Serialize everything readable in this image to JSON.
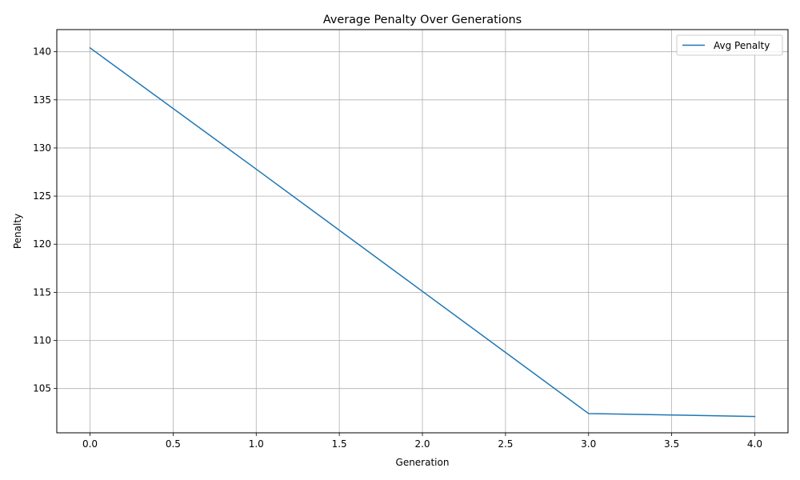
{
  "chart_data": {
    "type": "line",
    "title": "Average Penalty Over Generations",
    "xlabel": "Generation",
    "ylabel": "Penalty",
    "xlim": [
      -0.2,
      4.2
    ],
    "ylim": [
      100.4,
      142.3
    ],
    "xticks": [
      0.0,
      0.5,
      1.0,
      1.5,
      2.0,
      2.5,
      3.0,
      3.5,
      4.0
    ],
    "xtick_labels": [
      "0.0",
      "0.5",
      "1.0",
      "1.5",
      "2.0",
      "2.5",
      "3.0",
      "3.5",
      "4.0"
    ],
    "yticks": [
      105,
      110,
      115,
      120,
      125,
      130,
      135,
      140
    ],
    "ytick_labels": [
      "105",
      "110",
      "115",
      "120",
      "125",
      "130",
      "135",
      "140"
    ],
    "grid": true,
    "legend_position": "top-right",
    "series": [
      {
        "name": "Avg Penalty",
        "color": "#1f77b4",
        "x": [
          0,
          1,
          2,
          3,
          4
        ],
        "y": [
          140.4,
          127.8,
          115.1,
          102.4,
          102.1
        ]
      }
    ]
  }
}
